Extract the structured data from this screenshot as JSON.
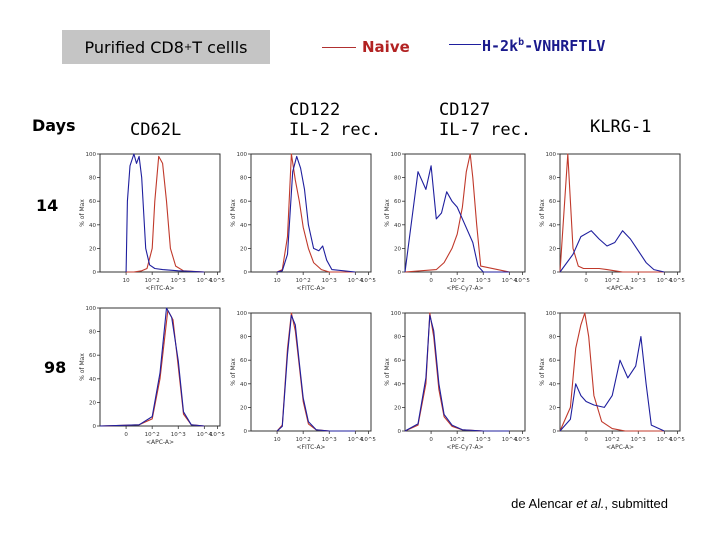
{
  "header": {
    "title_main": "Purified CD8",
    "title_sup": "+",
    "title_tail": " T cellls",
    "legend_naive": "Naive",
    "legend_h2k_main": "H-2k",
    "legend_h2k_sup": "b",
    "legend_h2k_tail": "-VNHRFTLV"
  },
  "columns": {
    "days": "Days",
    "cd62l": "CD62L",
    "cd122_line1": "CD122",
    "cd122_line2": "IL-2 rec.",
    "cd127_line1": "CD127",
    "cd127_line2": "IL-7 rec.",
    "klrg1": "KLRG-1"
  },
  "rows": {
    "r14": "14",
    "r98": "98"
  },
  "credit": {
    "pre": "de Alencar ",
    "italic": "et al.",
    "post": ", submitted"
  },
  "colors": {
    "naive": "#c0392b",
    "antigen": "#1f1f9e",
    "axis": "#333333"
  },
  "chart_data": [
    {
      "type": "line",
      "day": "14",
      "marker": "CD62L",
      "xlabel": "<FITC-A>",
      "ylabel": "% of Max",
      "ylim": [
        0,
        100
      ],
      "yticks": [
        0,
        20,
        40,
        60,
        80,
        100
      ],
      "xticks": [
        "10",
        "10^2",
        "10^3",
        "10^4",
        "10^5"
      ],
      "series": [
        {
          "name": "Naive",
          "x": [
            1,
            1.3,
            1.6,
            1.8,
            2.0,
            2.1,
            2.25,
            2.4,
            2.55,
            2.7,
            2.9,
            3.2,
            4
          ],
          "y": [
            0,
            0,
            1,
            3,
            20,
            60,
            98,
            92,
            60,
            20,
            5,
            1,
            0
          ]
        },
        {
          "name": "H-2kb-VNHRFTLV",
          "x": [
            1,
            1.05,
            1.15,
            1.3,
            1.4,
            1.5,
            1.6,
            1.75,
            1.9,
            2.1,
            2.4,
            3,
            4
          ],
          "y": [
            0,
            60,
            90,
            100,
            92,
            98,
            80,
            20,
            6,
            3,
            2,
            1,
            0
          ]
        }
      ]
    },
    {
      "type": "line",
      "day": "14",
      "marker": "CD122 IL-2 rec.",
      "xlabel": "<FITC-A>",
      "ylabel": "% of Max",
      "ylim": [
        0,
        100
      ],
      "yticks": [
        0,
        20,
        40,
        60,
        80,
        100
      ],
      "xticks": [
        "10",
        "10^2",
        "10^3",
        "10^4",
        "10^5"
      ],
      "series": [
        {
          "name": "Naive",
          "x": [
            1,
            1.2,
            1.4,
            1.55,
            1.7,
            1.85,
            2.0,
            2.2,
            2.4,
            2.7,
            3,
            4
          ],
          "y": [
            0,
            2,
            30,
            100,
            78,
            60,
            38,
            20,
            8,
            2,
            0,
            0
          ]
        },
        {
          "name": "H-2kb-VNHRFTLV",
          "x": [
            1,
            1.2,
            1.4,
            1.6,
            1.75,
            1.9,
            2.05,
            2.2,
            2.4,
            2.6,
            2.75,
            2.9,
            3.1,
            4
          ],
          "y": [
            0,
            1,
            15,
            85,
            98,
            88,
            70,
            40,
            20,
            18,
            22,
            10,
            2,
            0
          ]
        }
      ]
    },
    {
      "type": "line",
      "day": "14",
      "marker": "CD127 IL-7 rec.",
      "xlabel": "<PE-Cy7-A>",
      "ylabel": "% of Max",
      "ylim": [
        0,
        100
      ],
      "yticks": [
        0,
        20,
        40,
        60,
        80,
        100
      ],
      "xticks": [
        "0",
        "10^2",
        "10^3",
        "10^4",
        "10^5"
      ],
      "series": [
        {
          "name": "Naive",
          "x": [
            0,
            1.2,
            1.5,
            1.8,
            2.0,
            2.2,
            2.35,
            2.5,
            2.6,
            2.75,
            2.9,
            4
          ],
          "y": [
            0,
            2,
            8,
            20,
            32,
            55,
            85,
            100,
            80,
            40,
            5,
            0
          ]
        },
        {
          "name": "H-2kb-VNHRFTLV",
          "x": [
            0,
            0.5,
            0.8,
            1.0,
            1.2,
            1.4,
            1.6,
            1.8,
            2.0,
            2.3,
            2.6,
            2.8,
            3,
            4
          ],
          "y": [
            0,
            85,
            70,
            90,
            45,
            50,
            68,
            60,
            55,
            40,
            25,
            5,
            0,
            0
          ]
        }
      ]
    },
    {
      "type": "line",
      "day": "14",
      "marker": "KLRG-1",
      "xlabel": "<APC-A>",
      "ylabel": "% of Max",
      "ylim": [
        0,
        100
      ],
      "yticks": [
        0,
        20,
        40,
        60,
        80,
        100
      ],
      "xticks": [
        "0",
        "10^2",
        "10^3",
        "10^4",
        "10^5"
      ],
      "series": [
        {
          "name": "Naive",
          "x": [
            0,
            0.3,
            0.5,
            0.7,
            0.9,
            1.2,
            1.5,
            1.8,
            2.1,
            2.4,
            4
          ],
          "y": [
            0,
            100,
            20,
            5,
            3,
            3,
            3,
            2,
            1,
            0,
            0
          ]
        },
        {
          "name": "H-2kb-VNHRFTLV",
          "x": [
            0,
            0.5,
            0.8,
            1.2,
            1.5,
            1.8,
            2.1,
            2.4,
            2.7,
            3.0,
            3.3,
            3.6,
            4
          ],
          "y": [
            0,
            15,
            30,
            35,
            28,
            22,
            25,
            35,
            28,
            18,
            8,
            2,
            0
          ]
        }
      ]
    },
    {
      "type": "line",
      "day": "98",
      "marker": "CD62L",
      "xlabel": "<APC-A>",
      "ylabel": "% of Max",
      "ylim": [
        0,
        100
      ],
      "yticks": [
        0,
        20,
        40,
        60,
        80,
        100
      ],
      "xticks": [
        "0",
        "10^2",
        "10^3",
        "10^4",
        "10^5"
      ],
      "series": [
        {
          "name": "Naive",
          "x": [
            0,
            1.5,
            2.0,
            2.3,
            2.6,
            2.8,
            3.0,
            3.2,
            3.5,
            4
          ],
          "y": [
            0,
            1,
            6,
            40,
            98,
            90,
            50,
            10,
            1,
            0
          ]
        },
        {
          "name": "H-2kb-VNHRFTLV",
          "x": [
            0,
            1.5,
            2.0,
            2.3,
            2.55,
            2.75,
            3.0,
            3.2,
            3.5,
            4
          ],
          "y": [
            0,
            1,
            8,
            45,
            100,
            92,
            55,
            12,
            1,
            0
          ]
        }
      ]
    },
    {
      "type": "line",
      "day": "98",
      "marker": "CD122 IL-2 rec.",
      "xlabel": "<FITC-A>",
      "ylabel": "% of Max",
      "ylim": [
        0,
        100
      ],
      "yticks": [
        0,
        20,
        40,
        60,
        80,
        100
      ],
      "xticks": [
        "10",
        "10^2",
        "10^3",
        "10^4",
        "10^5"
      ],
      "series": [
        {
          "name": "Naive",
          "x": [
            1,
            1.2,
            1.4,
            1.55,
            1.7,
            1.85,
            2.0,
            2.2,
            2.5,
            3,
            4
          ],
          "y": [
            0,
            5,
            70,
            100,
            85,
            55,
            25,
            6,
            1,
            0,
            0
          ]
        },
        {
          "name": "H-2kb-VNHRFTLV",
          "x": [
            1,
            1.2,
            1.4,
            1.55,
            1.7,
            1.85,
            2.0,
            2.2,
            2.5,
            3,
            4
          ],
          "y": [
            0,
            4,
            65,
            98,
            90,
            58,
            28,
            8,
            1,
            0,
            0
          ]
        }
      ]
    },
    {
      "type": "line",
      "day": "98",
      "marker": "CD127 IL-7 rec.",
      "xlabel": "<PE-Cy7-A>",
      "ylabel": "% of Max",
      "ylim": [
        0,
        100
      ],
      "yticks": [
        0,
        20,
        40,
        60,
        80,
        100
      ],
      "xticks": [
        "0",
        "10^2",
        "10^3",
        "10^4",
        "10^5"
      ],
      "series": [
        {
          "name": "Naive",
          "x": [
            0,
            0.5,
            0.8,
            0.95,
            1.1,
            1.3,
            1.5,
            1.8,
            2.2,
            3,
            4
          ],
          "y": [
            0,
            5,
            40,
            100,
            80,
            35,
            12,
            4,
            1,
            0,
            0
          ]
        },
        {
          "name": "H-2kb-VNHRFTLV",
          "x": [
            0,
            0.5,
            0.8,
            0.95,
            1.1,
            1.3,
            1.5,
            1.8,
            2.2,
            3,
            4
          ],
          "y": [
            0,
            6,
            45,
            98,
            85,
            40,
            14,
            5,
            1,
            0,
            0
          ]
        }
      ]
    },
    {
      "type": "line",
      "day": "98",
      "marker": "KLRG-1",
      "xlabel": "<APC-A>",
      "ylabel": "% of Max",
      "ylim": [
        0,
        100
      ],
      "yticks": [
        0,
        20,
        40,
        60,
        80,
        100
      ],
      "xticks": [
        "0",
        "10^2",
        "10^3",
        "10^4",
        "10^5"
      ],
      "series": [
        {
          "name": "Naive",
          "x": [
            0,
            0.4,
            0.6,
            0.8,
            0.95,
            1.1,
            1.3,
            1.6,
            2.0,
            2.5,
            4
          ],
          "y": [
            0,
            20,
            70,
            90,
            100,
            80,
            30,
            8,
            2,
            0,
            0
          ]
        },
        {
          "name": "H-2kb-VNHRFTLV",
          "x": [
            0,
            0.4,
            0.6,
            0.8,
            1.0,
            1.3,
            1.7,
            2.0,
            2.3,
            2.6,
            2.9,
            3.1,
            3.3,
            3.5,
            4
          ],
          "y": [
            0,
            10,
            40,
            30,
            25,
            22,
            20,
            30,
            60,
            45,
            55,
            80,
            40,
            5,
            0
          ]
        }
      ]
    }
  ]
}
